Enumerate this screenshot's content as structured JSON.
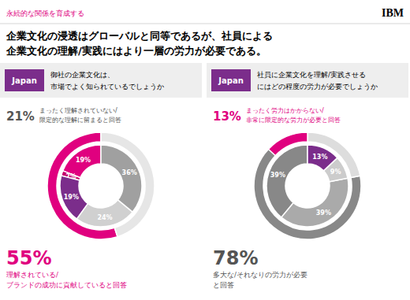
{
  "title": [
    "企業文化の浸透はグローバルと同等であるが、社員による",
    "企業文化の理解/実践にはより一層の労力が必要である。"
  ],
  "subtitle": "永続的な関係を育成する",
  "annotations": [
    "IBM"
  ],
  "chart_data": [
    {
      "type": "pie",
      "title": "Japan",
      "color": "#7B2D8B",
      "subtitle": [
        "御社の企業文化は、",
        "市場でよく知られているでしょうか"
      ],
      "data_labels": true,
      "series": [
        {
          "values": [
            19,
            2,
            19,
            24,
            36
          ],
          "value_labels": [
            "19%",
            "2%",
            "19%",
            "24%",
            "36%"
          ],
          "colors": [
            "#e0007f",
            "#c4006a",
            "#7B2D8B",
            "#d0d0d0",
            "#a0a0a0"
          ]
        },
        {
          "values": [
            55,
            45
          ],
          "colors": [
            "#e0007f",
            "#e6e6e6"
          ]
        }
      ],
      "annotations": [
        {
          "text": "21%",
          "lines": [
            "まったく理解されていない/",
            "限定的な理解に留まると回答"
          ],
          "color": "#555555"
        },
        {
          "text": "55%",
          "lines": [
            "理解されている/",
            "ブランドの成功に貢献していると回答"
          ],
          "color": "#e0007f"
        }
      ]
    },
    {
      "type": "pie",
      "title": "Japan",
      "color": "#7B2D8B",
      "subtitle": [
        "社員に企業文化を理解/実践させる",
        "にはどの程度の労力が必要でしょうか"
      ],
      "data_labels": true,
      "series": [
        {
          "values": [
            39,
            39,
            9,
            13
          ],
          "value_labels": [
            "39%",
            "39%",
            "9%",
            "13%"
          ],
          "colors": [
            "#888888",
            "#aaaaaa",
            "#cccccc",
            "#7B2D8B"
          ]
        },
        {
          "values": [
            78,
            22
          ],
          "colors": [
            "#888888",
            "#dddddd"
          ]
        },
        {
          "values": [
            13,
            87
          ],
          "colors": [
            "#e0007f",
            "none"
          ]
        }
      ],
      "annotations": [
        {
          "text": "13%",
          "lines": [
            "まったく労力はかからない/",
            "非常に限定的な労力が必要と回答"
          ],
          "color": "#e0007f"
        },
        {
          "text": "78%",
          "lines": [
            "多大な/それなりの労力が必要",
            "と回答"
          ],
          "color": "#555555"
        }
      ]
    }
  ]
}
